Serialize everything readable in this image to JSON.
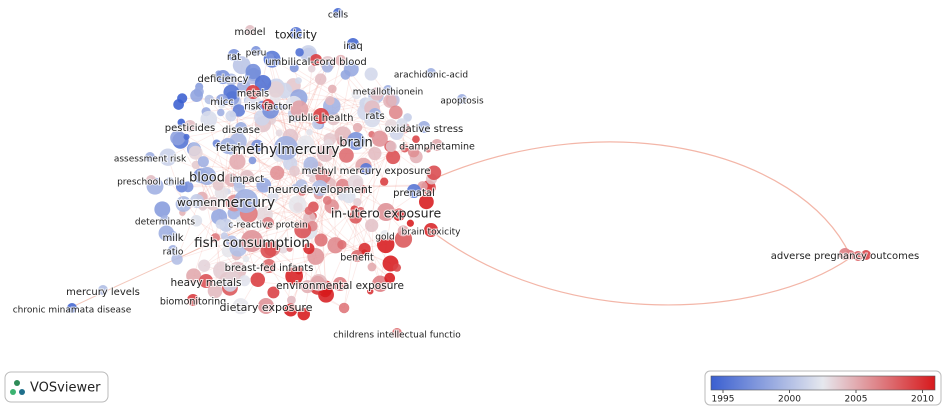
{
  "nodes": [
    {
      "label": "cells"
    },
    {
      "label": "model"
    },
    {
      "label": "toxicity"
    },
    {
      "label": "peru"
    },
    {
      "label": "rat"
    },
    {
      "label": "iraq"
    },
    {
      "label": "umbilical-cord blood"
    },
    {
      "label": "deficiency"
    },
    {
      "label": "arachidonic-acid"
    },
    {
      "label": "metallothionein"
    },
    {
      "label": "apoptosis"
    },
    {
      "label": "metals"
    },
    {
      "label": "micc"
    },
    {
      "label": "risk factor"
    },
    {
      "label": "public health"
    },
    {
      "label": "rats"
    },
    {
      "label": "pesticides"
    },
    {
      "label": "disease"
    },
    {
      "label": "oxidative stress"
    },
    {
      "label": "brain"
    },
    {
      "label": "fetal"
    },
    {
      "label": "methylmercury"
    },
    {
      "label": "d-amphetamine"
    },
    {
      "label": "assessment risk"
    },
    {
      "label": "methyl mercury exposure"
    },
    {
      "label": "blood"
    },
    {
      "label": "impact"
    },
    {
      "label": "prenatal"
    },
    {
      "label": "preschool child"
    },
    {
      "label": "neurodevelopment"
    },
    {
      "label": "mercury"
    },
    {
      "label": "women"
    },
    {
      "label": "in-utero exposure"
    },
    {
      "label": "determinants"
    },
    {
      "label": "c-reactive protein"
    },
    {
      "label": "brain toxicity"
    },
    {
      "label": "milk"
    },
    {
      "label": "gold"
    },
    {
      "label": "fish consumption"
    },
    {
      "label": "ratio"
    },
    {
      "label": "benefit"
    },
    {
      "label": "breast-fed infants"
    },
    {
      "label": "heavy metals"
    },
    {
      "label": "environmental exposure"
    },
    {
      "label": "mercury levels"
    },
    {
      "label": "biomonitoring"
    },
    {
      "label": "dietary exposure"
    },
    {
      "label": "chronic minamata disease"
    },
    {
      "label": "childrens intellectual functio"
    },
    {
      "label": "adverse pregnancy outcomes"
    }
  ],
  "legend": {
    "ticks": [
      1995,
      2000,
      2005,
      2010
    ]
  },
  "logo": {
    "text": "VOSviewer"
  }
}
